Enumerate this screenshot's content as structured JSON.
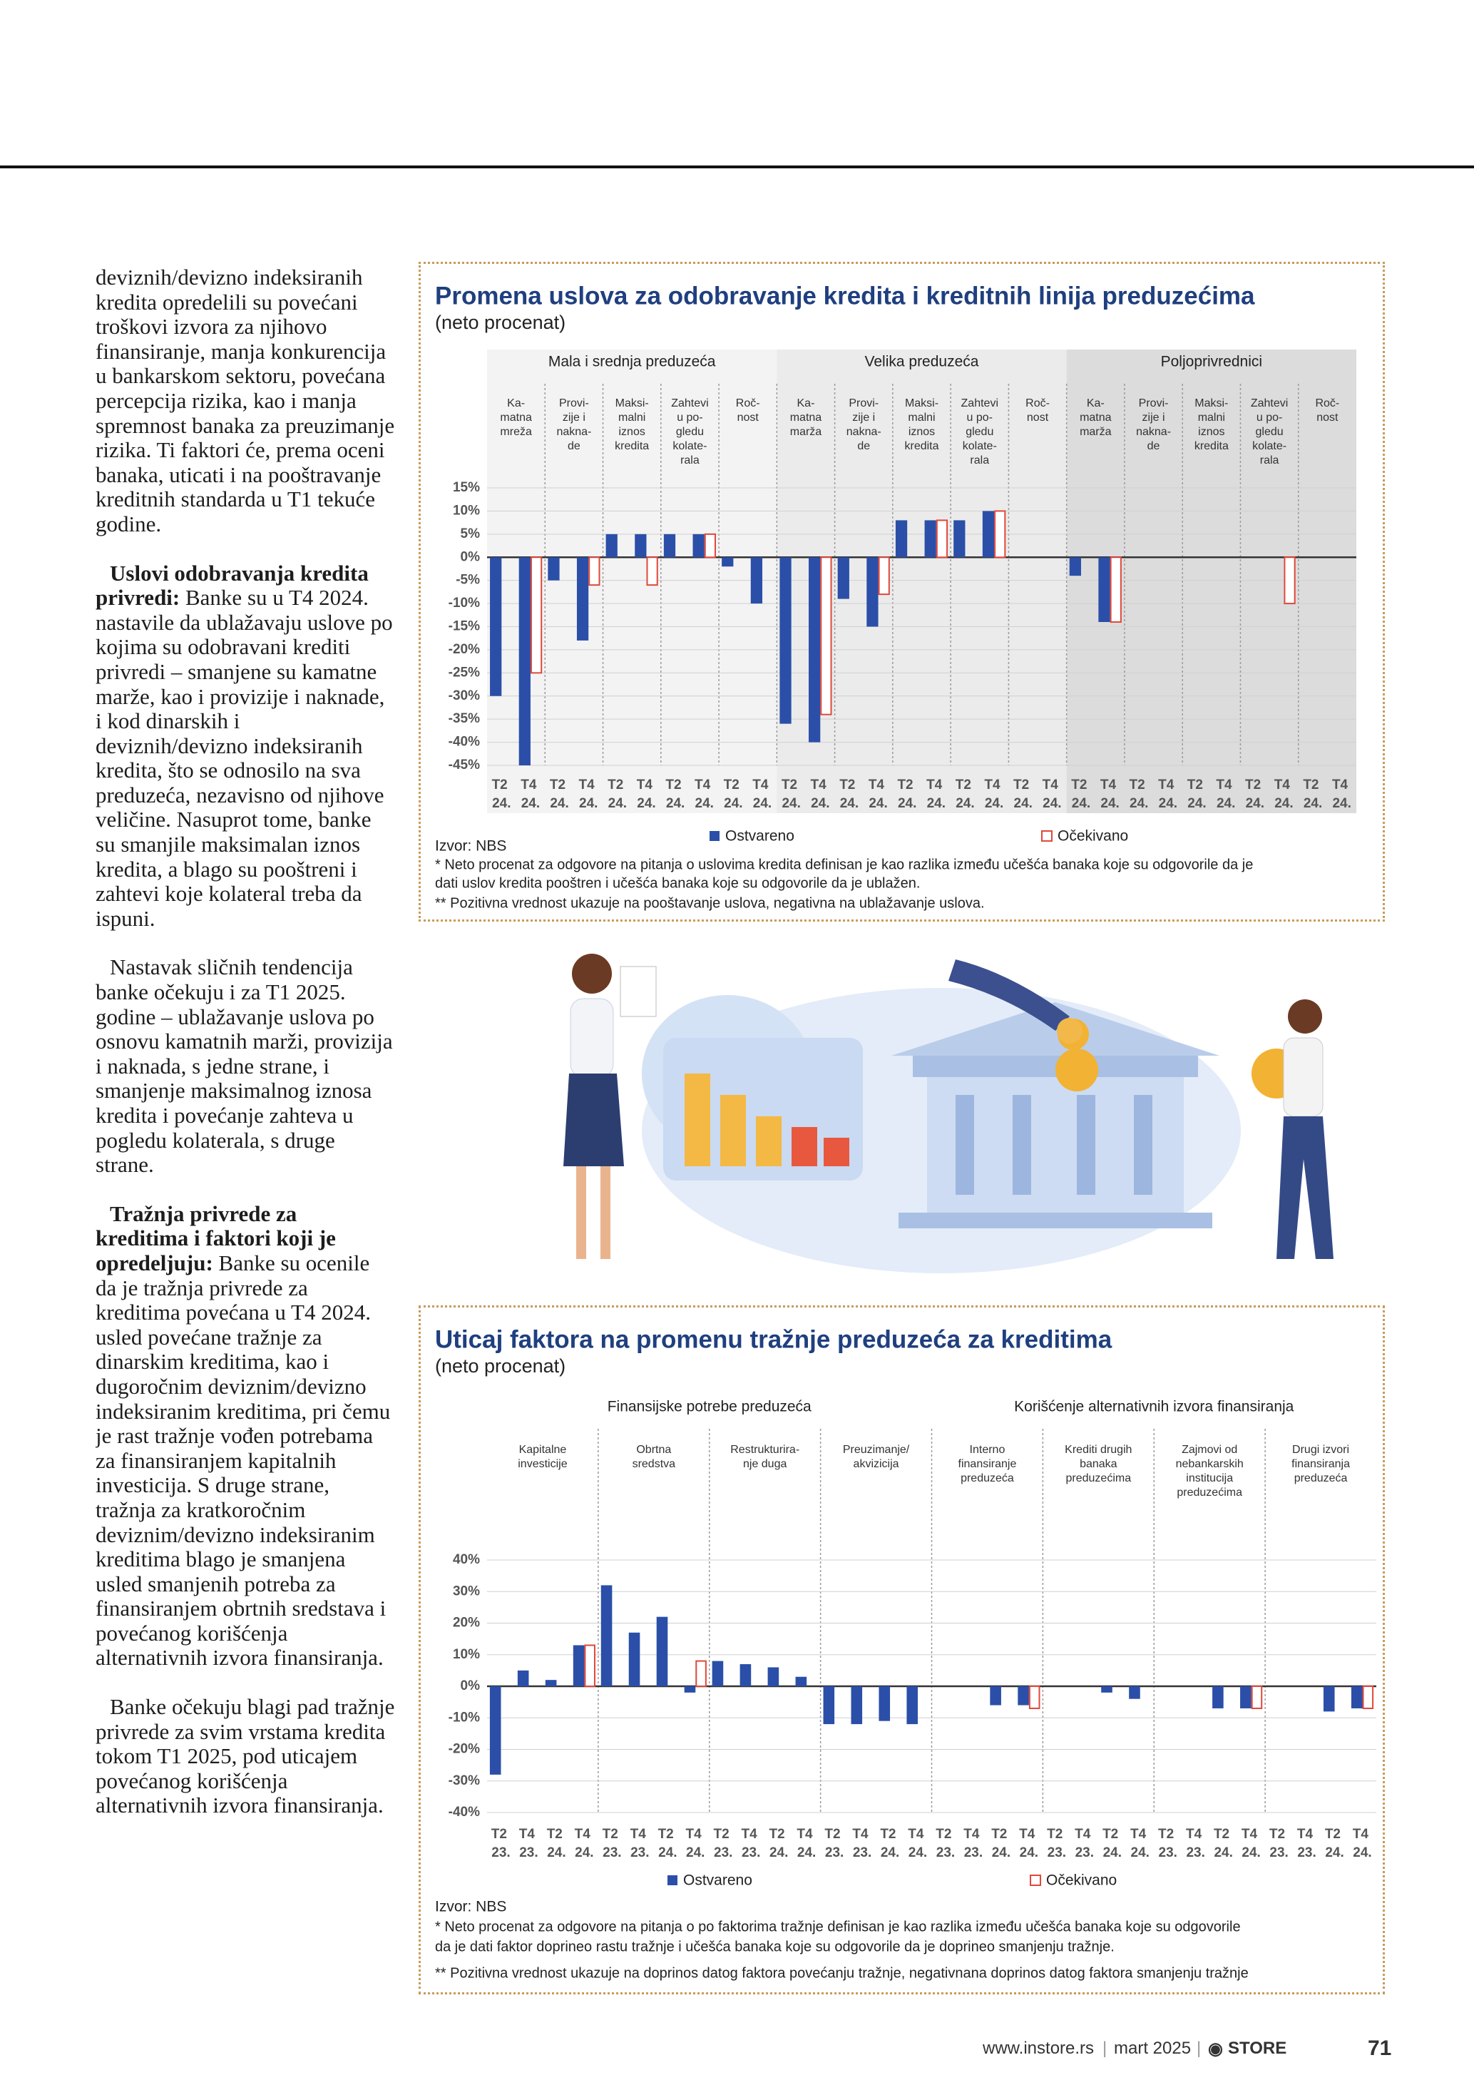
{
  "text": {
    "paragraphs": [
      {
        "body": "deviznih/devizno indeksiranih kredita opredelili su povećani troškovi izvora za njihovo finansiranje, manja konkurencija u bankarskom sektoru, povećana percepcija rizika, kao i manja spremnost banaka za preuzimanje rizika. Ti faktori će, prema oceni banaka, uticati i na pooštravanje kreditnih standarda u T1 tekuće godine."
      },
      {
        "lead": "Uslovi odobravanja kredita privredi:",
        "body": "Banke su u T4 2024. nastavile da ublažavaju uslove po kojima su odobravani krediti privredi – smanjene su kamatne marže, kao i provizije i naknade, i kod dinarskih i deviznih/devizno indeksiranih kredita, što se odnosilo na sva preduzeća, nezavisno od njihove veličine. Nasuprot tome, banke su smanjile maksimalan iznos kredita, a blago su pooštreni i zahtevi koje kolateral treba da ispuni."
      },
      {
        "body": "Nastavak sličnih tendencija banke očekuju i za T1 2025. godine – ublažavanje uslova po osnovu kamatnih marži, provizija i naknada, s jedne strane, i smanjenje maksimalnog iznosa kredita i povećanje zahteva u pogledu kolaterala, s druge strane."
      },
      {
        "lead": "Tražnja privrede za kreditima i faktori koji je opredeljuju:",
        "body": "Banke su ocenile da je tražnja privrede za kreditima povećana u T4 2024. usled povećane tražnje za dinarskim kreditima, kao i dugoročnim deviznim/devizno indeksiranim kreditima, pri čemu je rast tražnje vođen potrebama za finansiranjem kapitalnih investicija. S druge strane, tražnja za kratkoročnim deviznim/devizno indeksiranim kreditima blago je smanjena usled smanjenih potreba za finansiranjem obrtnih sredstava i povećanog korišćenja alternativnih izvora finansiranja."
      },
      {
        "body": "Banke očekuju blagi pad tražnje privrede za svim vrstama kredita tokom T1 2025, pod uticajem povećanog korišćenja alternativnih izvora finansiranja."
      }
    ]
  },
  "chart_data": [
    {
      "type": "bar",
      "title": "Promena uslova za odobravanje kredita i kreditnih linija preduzećima",
      "subtitle": "(neto procenat)",
      "groups": [
        {
          "name": "Mala i srednja preduzeća",
          "factors": [
            [
              "Ka-",
              "matna",
              "mreža"
            ],
            [
              "Provi-",
              "zije i",
              "nakna-",
              "de"
            ],
            [
              "Maksi-",
              "malni",
              "iznos",
              "kredita"
            ],
            [
              "Zahtevi",
              "u po-",
              "gledu",
              "kolate-",
              "rala"
            ],
            [
              "Roč-",
              "nost"
            ]
          ]
        },
        {
          "name": "Velika preduzeća",
          "factors": [
            [
              "Ka-",
              "matna",
              "marža"
            ],
            [
              "Provi-",
              "zije i",
              "nakna-",
              "de"
            ],
            [
              "Maksi-",
              "malni",
              "iznos",
              "kredita"
            ],
            [
              "Zahtevi",
              "u po-",
              "gledu",
              "kolate-",
              "rala"
            ],
            [
              "Roč-",
              "nost"
            ]
          ]
        },
        {
          "name": "Poljoprivrednici",
          "factors": [
            [
              "Ka-",
              "matna",
              "marža"
            ],
            [
              "Provi-",
              "zije i",
              "nakna-",
              "de"
            ],
            [
              "Maksi-",
              "malni",
              "iznos",
              "kredita"
            ],
            [
              "Zahtevi",
              "u po-",
              "gledu",
              "kolate-",
              "rala"
            ],
            [
              "Roč-",
              "nost"
            ]
          ]
        }
      ],
      "categories": [
        "T2 24.",
        "T4 24.",
        "T2 24.",
        "T4 24.",
        "T2 24.",
        "T4 24.",
        "T2 24.",
        "T4 24.",
        "T2 24.",
        "T4 24.",
        "T2 24.",
        "T4 24.",
        "T2 24.",
        "T4 24.",
        "T2 24.",
        "T4 24.",
        "T2 24.",
        "T4 24.",
        "T2 24.",
        "T4 24.",
        "T2 24.",
        "T4 24.",
        "T2 24.",
        "T4 24.",
        "T2 24.",
        "T4 24.",
        "T2 24.",
        "T4 24.",
        "T2 24.",
        "T4 24."
      ],
      "series": [
        {
          "name": "Ostvareno",
          "color": "#2b4fa8",
          "values": [
            -30,
            -45,
            -5,
            -18,
            5,
            5,
            5,
            5,
            -2,
            -10,
            -36,
            -40,
            -9,
            -15,
            8,
            8,
            8,
            10,
            null,
            null,
            -4,
            -14,
            null,
            null,
            null,
            null,
            null,
            null,
            null,
            null
          ]
        },
        {
          "name": "Očekivano",
          "color": "#e0483a",
          "values": [
            null,
            -25,
            null,
            -6,
            null,
            -6,
            null,
            5,
            null,
            null,
            null,
            -34,
            null,
            -8,
            null,
            8,
            null,
            10,
            null,
            null,
            null,
            -14,
            null,
            null,
            null,
            null,
            null,
            -10,
            null,
            null
          ]
        }
      ],
      "ylim": [
        -45,
        15
      ],
      "yticks": [
        {
          "value": 15,
          "label": "15%"
        },
        {
          "value": 10,
          "label": "10%"
        },
        {
          "value": 5,
          "label": "5%"
        },
        {
          "value": 0,
          "label": "0%"
        },
        {
          "value": -5,
          "label": "-5%"
        },
        {
          "value": -10,
          "label": "-10%"
        },
        {
          "value": -15,
          "label": "-15%"
        },
        {
          "value": -20,
          "label": "-20%"
        },
        {
          "value": -25,
          "label": "-25%"
        },
        {
          "value": -30,
          "label": "-30%"
        },
        {
          "value": -35,
          "label": "-35%"
        },
        {
          "value": -40,
          "label": "-40%"
        },
        {
          "value": -45,
          "label": "-45%"
        }
      ],
      "grid": true,
      "source": "Izvor: NBS",
      "notes": [
        "*  Neto procenat za odgovore na pitanja o uslovima kredita definisan je kao razlika između učešća banaka koje su odgovorile da je",
        "dati uslov kredita pooštren i učešća banaka koje su odgovorile da je ublažen.",
        "** Pozitivna vrednost ukazuje na pooštavanje uslova, negativna na ublažavanje uslova."
      ]
    },
    {
      "type": "bar",
      "title": "Uticaj faktora na promenu tražnje preduzeća za kreditima",
      "subtitle": "(neto procenat)",
      "groups": [
        {
          "name": "Finansijske potrebe preduzeća",
          "factors": [
            [
              "Kapitalne",
              "investicije"
            ],
            [
              "Obrtna",
              "sredstva"
            ],
            [
              "Restrukturira-",
              "nje duga"
            ],
            [
              "Preuzimanje/",
              "akvizicija"
            ]
          ]
        },
        {
          "name": "Korišćenje alternativnih izvora finansiranja",
          "factors": [
            [
              "Interno",
              "finansiranje",
              "preduzeća"
            ],
            [
              "Krediti drugih",
              "banaka",
              "preduzećima"
            ],
            [
              "Zajmovi od",
              "nebankarskih",
              "institucija",
              "preduzećima"
            ],
            [
              "Drugi izvori",
              "finansiranja",
              "preduzeća"
            ]
          ]
        }
      ],
      "categories": [
        "T2 23.",
        "T4 23.",
        "T2 24.",
        "T4 24.",
        "T2 23.",
        "T4 23.",
        "T2 24.",
        "T4 24.",
        "T2 23.",
        "T4 23.",
        "T2 24.",
        "T4 24.",
        "T2 23.",
        "T4 23.",
        "T2 24.",
        "T4 24.",
        "T2 23.",
        "T4 23.",
        "T2 24.",
        "T4 24.",
        "T2 23.",
        "T4 23.",
        "T2 24.",
        "T4 24.",
        "T2 23.",
        "T4 23.",
        "T2 24.",
        "T4 24.",
        "T2 23.",
        "T4 23.",
        "T2 24.",
        "T4 24."
      ],
      "series": [
        {
          "name": "Ostvareno",
          "color": "#2b4fa8",
          "values": [
            -28,
            5,
            2,
            13,
            32,
            17,
            22,
            -2,
            8,
            7,
            6,
            3,
            -12,
            -12,
            -11,
            -12,
            null,
            null,
            -6,
            -6,
            null,
            null,
            -2,
            -4,
            null,
            null,
            -7,
            -7,
            null,
            null,
            -8,
            -7
          ]
        },
        {
          "name": "Očekivano",
          "color": "#e0483a",
          "values": [
            null,
            null,
            null,
            13,
            null,
            null,
            null,
            8,
            null,
            null,
            null,
            null,
            null,
            null,
            null,
            null,
            null,
            null,
            null,
            -7,
            null,
            null,
            null,
            null,
            null,
            null,
            null,
            -7,
            null,
            null,
            null,
            -7
          ]
        }
      ],
      "ylim": [
        -40,
        40
      ],
      "yticks": [
        {
          "value": 40,
          "label": "40%"
        },
        {
          "value": 30,
          "label": "30%"
        },
        {
          "value": 20,
          "label": "20%"
        },
        {
          "value": 10,
          "label": "10%"
        },
        {
          "value": 0,
          "label": "0%"
        },
        {
          "value": -10,
          "label": "-10%"
        },
        {
          "value": -20,
          "label": "-20%"
        },
        {
          "value": -30,
          "label": "-30%"
        },
        {
          "value": -40,
          "label": "-40%"
        }
      ],
      "grid": true,
      "source": "Izvor: NBS",
      "notes": [
        "*  Neto procenat za odgovore na pitanja o po faktorima tražnje definisan je kao razlika između učešća banaka koje su odgovorile",
        "da je dati faktor doprineo rastu tražnje i učešća banaka koje su odgovorile da je doprineo smanjenju tražnje.",
        "** Pozitivna vrednost ukazuje na doprinos datog faktora povećanju tražnje, negativnana doprinos datog faktora smanjenju tražnje"
      ]
    }
  ],
  "footer": {
    "website": "www.instore.rs",
    "issue": "mart 2025",
    "brand": "STORE",
    "page": "71"
  }
}
